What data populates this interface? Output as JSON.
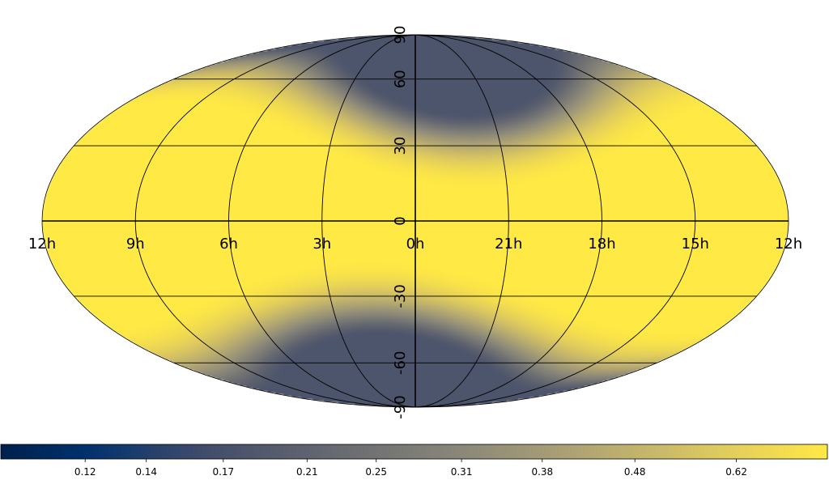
{
  "chart_data": {
    "type": "heatmap",
    "projection": "mollweide",
    "title": "",
    "colormap": "cividis",
    "colormap_stops": [
      "#00204c",
      "#00336f",
      "#39486b",
      "#575c6d",
      "#707173",
      "#8a8779",
      "#a69d75",
      "#c4b56c",
      "#e4cf5b",
      "#ffe945"
    ],
    "ra_tick_labels": [
      "12h",
      "9h",
      "6h",
      "3h",
      "0h",
      "21h",
      "18h",
      "15h",
      "12h"
    ],
    "dec_tick_labels": [
      "90",
      "60",
      "30",
      "0",
      "-30",
      "-60",
      "-90"
    ],
    "dec_tick_values": [
      90,
      60,
      30,
      0,
      -30,
      -60,
      -90
    ],
    "graticule": {
      "dec_step_deg": 30,
      "ra_step_h": 3
    },
    "colorbar": {
      "orientation": "horizontal",
      "scale": "log",
      "tick_labels": [
        "0.12",
        "0.14",
        "0.17",
        "0.21",
        "0.25",
        "0.31",
        "0.38",
        "0.48",
        "0.62"
      ],
      "tick_values": [
        0.12,
        0.14,
        0.17,
        0.21,
        0.25,
        0.31,
        0.38,
        0.48,
        0.62
      ],
      "range": [
        0.097,
        0.78
      ]
    },
    "field": {
      "description_pattern": "dipole",
      "low_center": {
        "ra_h": 1.5,
        "dec": -75
      },
      "low_center_2": {
        "ra_h": 22.0,
        "dec": 72
      },
      "value_min": 0.18,
      "value_max": 0.78
    }
  }
}
